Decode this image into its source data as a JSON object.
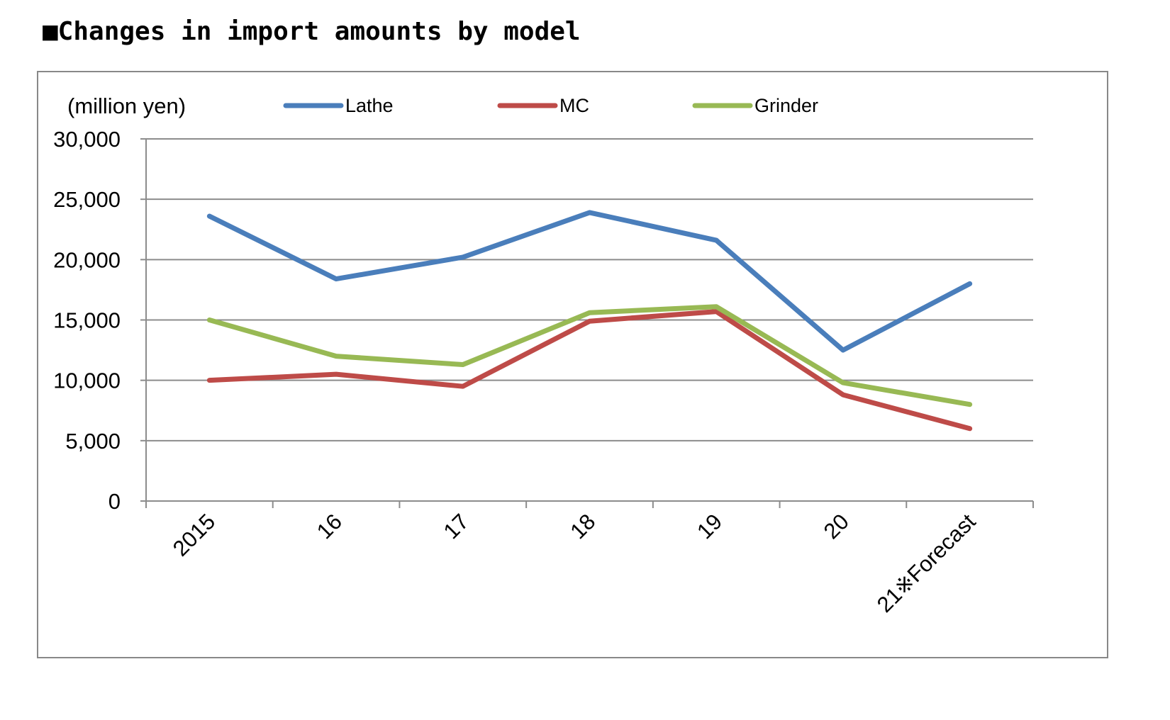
{
  "chart_data": {
    "type": "line",
    "title": "■Changes in import amounts by model",
    "ylabel": "(million yen)",
    "xlabel": "",
    "categories": [
      "2015",
      "16",
      "17",
      "18",
      "19",
      "20",
      "21※Forecast"
    ],
    "ylim": [
      0,
      30000
    ],
    "yticks": [
      0,
      5000,
      10000,
      15000,
      20000,
      25000,
      30000
    ],
    "ytick_labels": [
      "0",
      "5,000",
      "10,000",
      "15,000",
      "20,000",
      "25,000",
      "30,000"
    ],
    "grid": true,
    "legend_position": "top",
    "series": [
      {
        "name": "Lathe",
        "color": "#4a7ebb",
        "values": [
          23600,
          18400,
          20200,
          23900,
          21600,
          12500,
          18000
        ]
      },
      {
        "name": "MC",
        "color": "#be4b48",
        "values": [
          10000,
          10500,
          9500,
          14900,
          15700,
          8800,
          6000
        ]
      },
      {
        "name": "Grinder",
        "color": "#98b954",
        "values": [
          15000,
          12000,
          11300,
          15600,
          16100,
          9800,
          8000
        ]
      }
    ]
  }
}
